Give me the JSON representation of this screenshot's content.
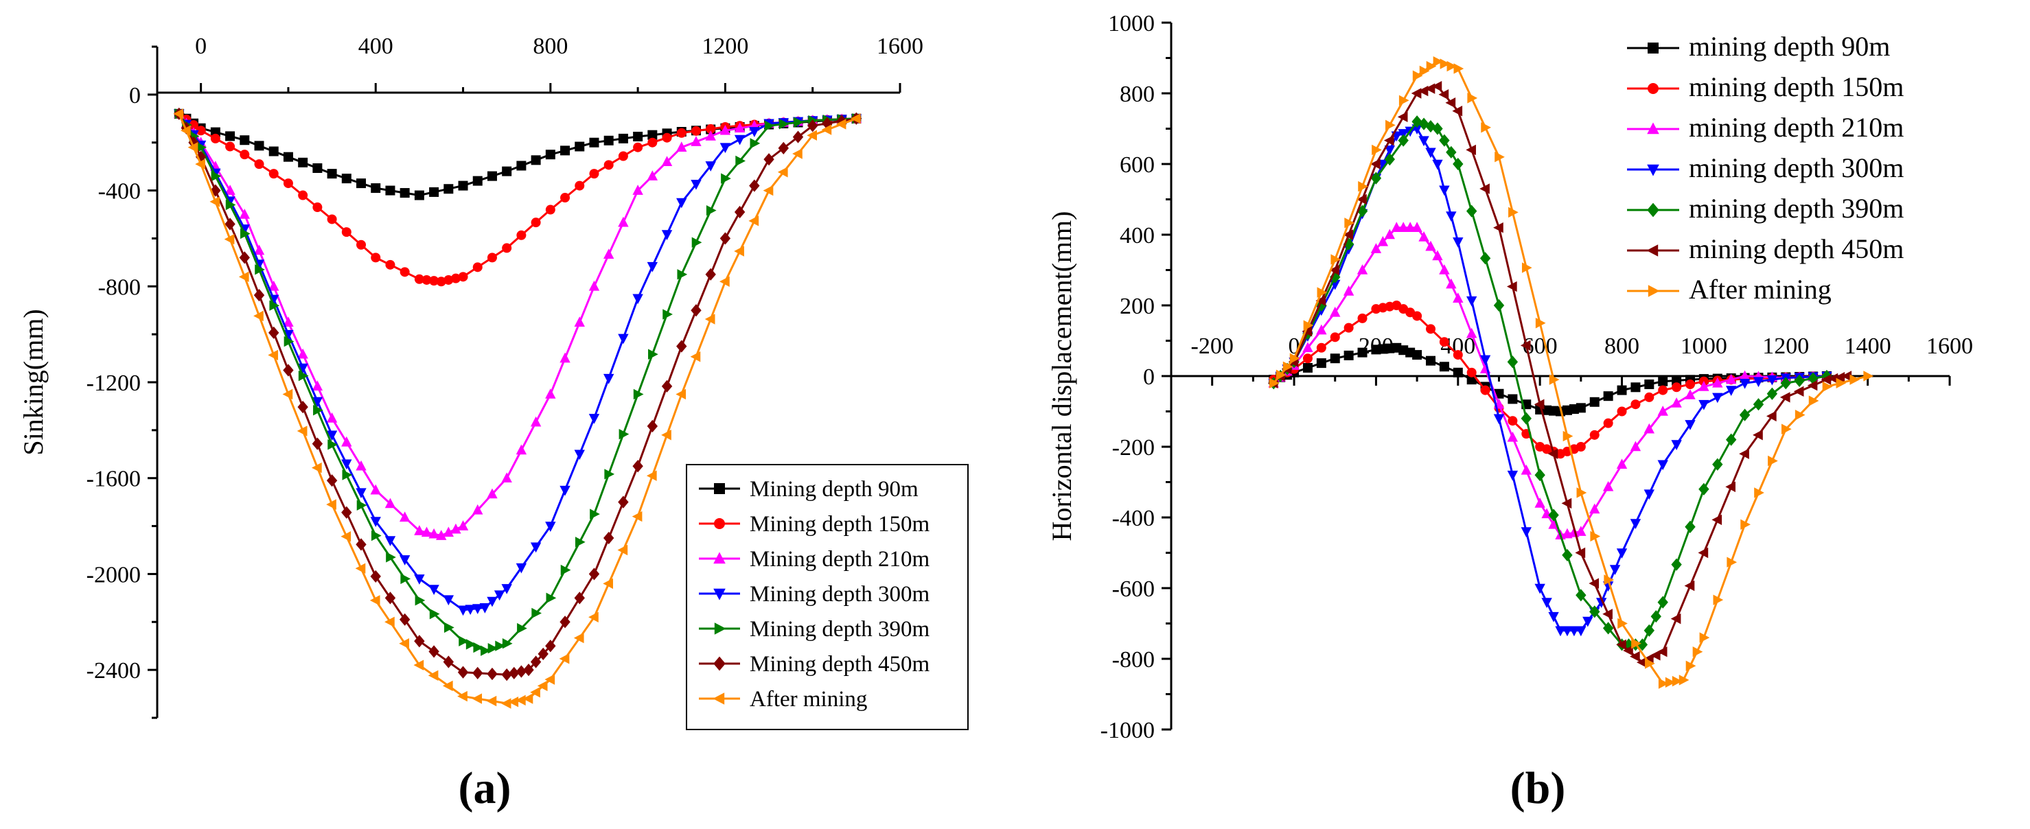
{
  "chart_data": [
    {
      "panel_label": "(a)",
      "type": "line",
      "title": "",
      "xlabel": "",
      "ylabel": "Sinking(mm)",
      "xlim": [
        -100,
        1600
      ],
      "ylim": [
        -2600,
        200
      ],
      "xticks": [
        "0",
        "400",
        "800",
        "1200",
        "1600"
      ],
      "yticks": [
        "0",
        "-400",
        "-800",
        "-1200",
        "-1600",
        "-2000",
        "-2400"
      ],
      "x_axis_position": "top",
      "grid": false,
      "legend_position": "bottom-right",
      "series": [
        {
          "name": "Mining depth 90m",
          "color": "#000000",
          "marker": "square",
          "x": [
            -50,
            0,
            100,
            200,
            300,
            400,
            500,
            600,
            700,
            800,
            900,
            1000,
            1100,
            1200,
            1300,
            1400,
            1500
          ],
          "y": [
            -80,
            -140,
            -190,
            -260,
            -330,
            -390,
            -420,
            -380,
            -320,
            -250,
            -200,
            -175,
            -155,
            -140,
            -125,
            -112,
            -100
          ]
        },
        {
          "name": "Mining depth 150m",
          "color": "#ff0000",
          "marker": "circle",
          "x": [
            -50,
            0,
            100,
            200,
            300,
            400,
            500,
            550,
            600,
            700,
            800,
            900,
            1000,
            1100,
            1200,
            1300,
            1400,
            1500
          ],
          "y": [
            -80,
            -150,
            -250,
            -370,
            -520,
            -680,
            -770,
            -780,
            -760,
            -640,
            -480,
            -330,
            -220,
            -160,
            -135,
            -120,
            -108,
            -100
          ]
        },
        {
          "name": "Mining depth 210m",
          "color": "#ff00ff",
          "marker": "triangle-up",
          "x": [
            -50,
            0,
            100,
            200,
            300,
            400,
            500,
            550,
            600,
            700,
            800,
            900,
            1000,
            1100,
            1200,
            1300,
            1400,
            1500
          ],
          "y": [
            -80,
            -200,
            -500,
            -950,
            -1350,
            -1650,
            -1820,
            -1840,
            -1800,
            -1600,
            -1250,
            -800,
            -400,
            -220,
            -150,
            -120,
            -108,
            -100
          ]
        },
        {
          "name": "Mining depth 300m",
          "color": "#0000ff",
          "marker": "triangle-down",
          "x": [
            -50,
            0,
            100,
            200,
            300,
            400,
            500,
            600,
            650,
            700,
            800,
            900,
            1000,
            1100,
            1200,
            1300,
            1400,
            1500
          ],
          "y": [
            -80,
            -210,
            -560,
            -1000,
            -1420,
            -1780,
            -2020,
            -2150,
            -2140,
            -2060,
            -1800,
            -1350,
            -850,
            -450,
            -220,
            -120,
            -108,
            -100
          ]
        },
        {
          "name": "Mining depth 390m",
          "color": "#008000",
          "marker": "triangle-right",
          "x": [
            -50,
            0,
            100,
            200,
            300,
            400,
            500,
            600,
            650,
            700,
            800,
            900,
            1000,
            1100,
            1200,
            1300,
            1400,
            1500
          ],
          "y": [
            -80,
            -220,
            -580,
            -1030,
            -1460,
            -1840,
            -2110,
            -2280,
            -2320,
            -2290,
            -2100,
            -1750,
            -1250,
            -750,
            -350,
            -130,
            -108,
            -100
          ]
        },
        {
          "name": "Mining depth 450m",
          "color": "#800000",
          "marker": "diamond",
          "x": [
            -50,
            0,
            100,
            200,
            300,
            400,
            500,
            600,
            700,
            750,
            800,
            900,
            1000,
            1100,
            1200,
            1300,
            1400,
            1500
          ],
          "y": [
            -80,
            -260,
            -680,
            -1150,
            -1610,
            -2010,
            -2280,
            -2410,
            -2420,
            -2400,
            -2300,
            -2000,
            -1550,
            -1050,
            -600,
            -270,
            -130,
            -100
          ]
        },
        {
          "name": "After mining",
          "color": "#ff8c00",
          "marker": "triangle-left",
          "x": [
            -50,
            0,
            100,
            200,
            300,
            400,
            500,
            600,
            700,
            750,
            800,
            900,
            1000,
            1100,
            1200,
            1300,
            1400,
            1500
          ],
          "y": [
            -80,
            -290,
            -760,
            -1250,
            -1710,
            -2110,
            -2380,
            -2510,
            -2540,
            -2520,
            -2440,
            -2180,
            -1760,
            -1250,
            -780,
            -400,
            -170,
            -100
          ]
        }
      ]
    },
    {
      "panel_label": "(b)",
      "type": "line",
      "title": "",
      "xlabel": "",
      "ylabel": "Horizontal displacement(mm)",
      "xlim": [
        -300,
        1600
      ],
      "ylim": [
        -1000,
        1000
      ],
      "xticks": [
        "-200",
        "0",
        "200",
        "400",
        "600",
        "800",
        "1000",
        "1200",
        "1400",
        "1600"
      ],
      "yticks": [
        "1000",
        "800",
        "600",
        "400",
        "200",
        "0",
        "-200",
        "-400",
        "-600",
        "-800",
        "-1000"
      ],
      "x_axis_position": "zero",
      "grid": false,
      "legend_position": "top-right",
      "series": [
        {
          "name": "mining depth 90m",
          "color": "#000000",
          "marker": "square",
          "x": [
            -50,
            0,
            100,
            200,
            250,
            300,
            400,
            500,
            600,
            650,
            700,
            800,
            900,
            1000,
            1100,
            1200,
            1300
          ],
          "y": [
            -10,
            10,
            50,
            75,
            80,
            60,
            10,
            -50,
            -95,
            -100,
            -90,
            -40,
            -15,
            -8,
            -5,
            -3,
            0
          ]
        },
        {
          "name": "mining depth 150m",
          "color": "#ff0000",
          "marker": "circle",
          "x": [
            -50,
            0,
            100,
            200,
            250,
            300,
            400,
            500,
            600,
            650,
            700,
            800,
            900,
            1000,
            1100,
            1200,
            1300
          ],
          "y": [
            -10,
            20,
            110,
            190,
            200,
            170,
            60,
            -90,
            -200,
            -220,
            -200,
            -100,
            -40,
            -15,
            -8,
            -4,
            0
          ]
        },
        {
          "name": "mining depth 210m",
          "color": "#ff00ff",
          "marker": "triangle-up",
          "x": [
            -50,
            0,
            100,
            200,
            250,
            300,
            350,
            400,
            500,
            600,
            650,
            700,
            800,
            900,
            1000,
            1100,
            1200,
            1300
          ],
          "y": [
            -20,
            30,
            180,
            360,
            420,
            420,
            340,
            220,
            -80,
            -360,
            -450,
            -440,
            -250,
            -100,
            -30,
            0,
            -5,
            0
          ]
        },
        {
          "name": "mining depth 300m",
          "color": "#0000ff",
          "marker": "triangle-down",
          "x": [
            -50,
            0,
            100,
            200,
            250,
            300,
            350,
            400,
            500,
            600,
            650,
            700,
            750,
            800,
            900,
            1000,
            1100,
            1200,
            1300
          ],
          "y": [
            -20,
            40,
            260,
            560,
            680,
            700,
            600,
            380,
            -120,
            -600,
            -720,
            -720,
            -640,
            -500,
            -250,
            -80,
            -20,
            -5,
            0
          ]
        },
        {
          "name": "mining depth 390m",
          "color": "#008000",
          "marker": "diamond",
          "x": [
            -50,
            0,
            100,
            200,
            300,
            350,
            400,
            500,
            600,
            700,
            800,
            850,
            900,
            1000,
            1100,
            1200,
            1300
          ],
          "y": [
            -20,
            40,
            280,
            560,
            720,
            700,
            600,
            200,
            -280,
            -620,
            -760,
            -760,
            -640,
            -320,
            -110,
            -20,
            0
          ]
        },
        {
          "name": "mining depth 450m",
          "color": "#800000",
          "marker": "triangle-left",
          "x": [
            -50,
            0,
            100,
            200,
            300,
            350,
            400,
            500,
            600,
            700,
            800,
            850,
            900,
            1000,
            1100,
            1200,
            1300,
            1350
          ],
          "y": [
            -20,
            40,
            300,
            600,
            800,
            820,
            750,
            420,
            -80,
            -500,
            -760,
            -810,
            -780,
            -500,
            -220,
            -60,
            -10,
            0
          ]
        },
        {
          "name": "After mining",
          "color": "#ff8c00",
          "marker": "triangle-right",
          "x": [
            -50,
            0,
            100,
            200,
            300,
            350,
            400,
            500,
            600,
            700,
            800,
            900,
            950,
            1000,
            1100,
            1200,
            1300,
            1400
          ],
          "y": [
            -20,
            50,
            330,
            640,
            850,
            890,
            870,
            620,
            150,
            -330,
            -700,
            -870,
            -860,
            -740,
            -420,
            -150,
            -30,
            0
          ]
        }
      ]
    }
  ]
}
